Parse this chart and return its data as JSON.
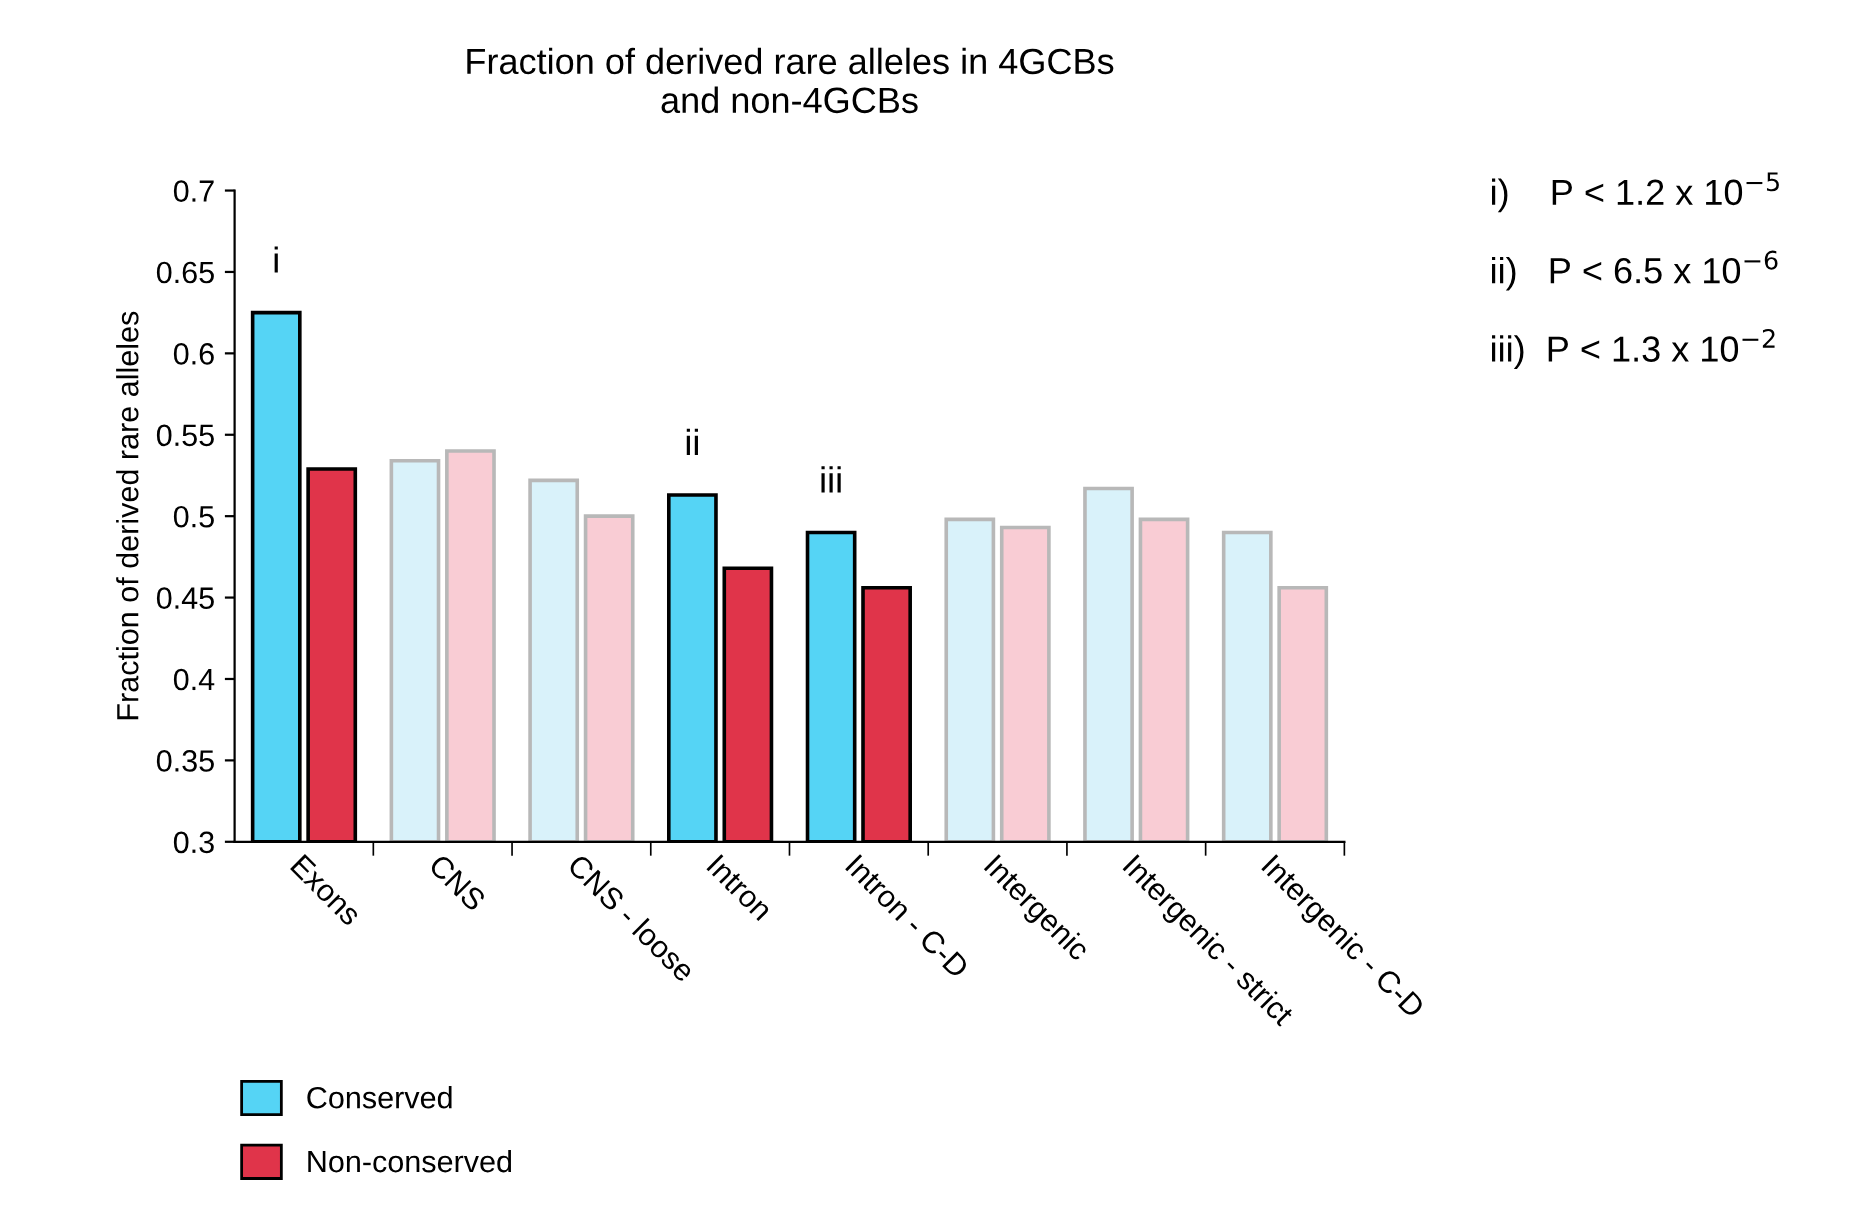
{
  "chart_data": {
    "type": "bar",
    "title": "Fraction of derived rare alleles in 4GCBs\nand non-4GCBs",
    "ylabel": "Fraction of derived rare alleles",
    "categories": [
      "Exons",
      "CNS",
      "CNS - loose",
      "Intron",
      "Intron - C-D",
      "Intergenic",
      "Intergenic - strict",
      "Intergenic - C-D"
    ],
    "series": [
      {
        "name": "Conserved",
        "color": "#55d4f5",
        "values": [
          0.625,
          0.534,
          0.522,
          0.513,
          0.49,
          0.498,
          0.517,
          0.49
        ],
        "colors": [
          "#55d4f5",
          "#d9f2fa",
          "#d9f2fa",
          "#55d4f5",
          "#55d4f5",
          "#d9f2fa",
          "#d9f2fa",
          "#d9f2fa"
        ]
      },
      {
        "name": "Non-conserved",
        "color": "#e0344a",
        "values": [
          0.529,
          0.54,
          0.5,
          0.468,
          0.456,
          0.493,
          0.498,
          0.456
        ],
        "colors": [
          "#e0344a",
          "#f9ccd4",
          "#f9ccd4",
          "#e0344a",
          "#e0344a",
          "#f9ccd4",
          "#f9ccd4",
          "#f9ccd4"
        ]
      }
    ],
    "ylim": [
      0.3,
      0.7
    ],
    "yticks": [
      0.3,
      0.35,
      0.4,
      0.45,
      0.5,
      0.55,
      0.6,
      0.65,
      0.7
    ],
    "annotations": [
      "i",
      "ii",
      "iii",
      "i)    P < 1.2 x 10$^{−5}$",
      "ii)   P < 6.5 x 10$^{−6}$",
      "iii)  P < 1.3 x 10$^{−2}$"
    ],
    "legend": "bottom left",
    "grid": false
  }
}
